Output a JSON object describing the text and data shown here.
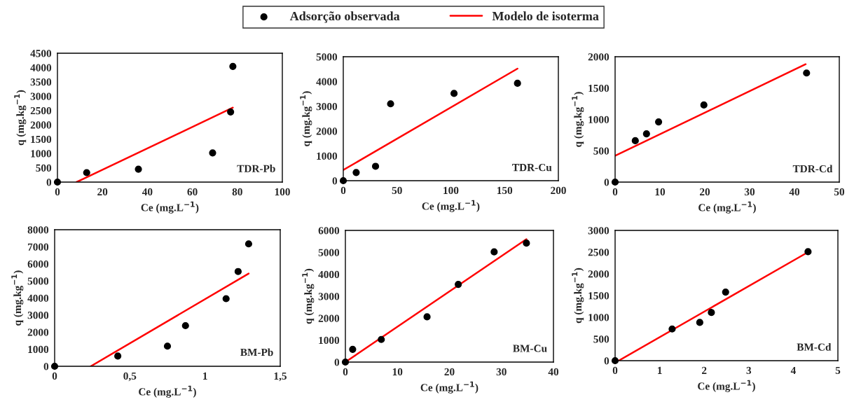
{
  "chart_data": [
    {
      "type": "scatter",
      "xlabel": "Ce (mg.L$^{−1}$)",
      "ylabel": "q (mg.kg$^{−1}$)",
      "annotations": [
        "TDR-Pb"
      ],
      "legend": "top",
      "grid": false,
      "xlim": [
        0,
        100
      ],
      "xticks": [
        0,
        20,
        40,
        60,
        80,
        100
      ],
      "ylim": [
        0,
        4500
      ],
      "yticks": [
        0,
        500,
        1000,
        1500,
        2000,
        2500,
        3000,
        3500,
        4000,
        4500
      ],
      "series": [
        {
          "name": "Adsorção observada",
          "marker": "circle",
          "color": "#000000",
          "x": [
            0,
            13,
            36,
            69,
            77,
            78
          ],
          "values": [
            0,
            330,
            450,
            1020,
            2450,
            4040
          ]
        },
        {
          "name": "Modelo de isoterma",
          "type": "line",
          "marker": "none",
          "color": "#ff0000",
          "x": [
            8.5,
            78
          ],
          "values": [
            0,
            2600
          ]
        }
      ]
    },
    {
      "type": "scatter",
      "xlabel": "Ce (mg.L$^{−1}$)",
      "ylabel": "q (mg.kg$^{−1}$)",
      "annotations": [
        "TDR-Cu"
      ],
      "grid": false,
      "xlim": [
        0,
        200
      ],
      "xticks": [
        0,
        50,
        100,
        150,
        200
      ],
      "ylim": [
        0,
        5000
      ],
      "yticks": [
        0,
        1000,
        2000,
        3000,
        4000,
        5000
      ],
      "series": [
        {
          "marker": "circle",
          "color": "#000000",
          "x": [
            0,
            12,
            30,
            44,
            103,
            162
          ],
          "values": [
            0,
            330,
            580,
            3100,
            3520,
            3930
          ]
        },
        {
          "type": "line",
          "marker": "none",
          "color": "#ff0000",
          "x": [
            0,
            162
          ],
          "values": [
            430,
            4520
          ]
        }
      ]
    },
    {
      "type": "scatter",
      "xlabel": "Ce (mg.L$^{−1}$)",
      "ylabel": "q (mg.kg$^{−1}$)",
      "annotations": [
        "TDR-Cd"
      ],
      "grid": false,
      "xlim": [
        0,
        50
      ],
      "xticks": [
        0,
        10,
        20,
        30,
        40,
        50
      ],
      "ylim": [
        0,
        2000
      ],
      "yticks": [
        0,
        500,
        1000,
        1500,
        2000
      ],
      "series": [
        {
          "marker": "circle",
          "color": "#000000",
          "x": [
            0,
            4.5,
            7,
            9.7,
            19.8,
            42.7
          ],
          "values": [
            0,
            660,
            770,
            960,
            1230,
            1740
          ]
        },
        {
          "type": "line",
          "marker": "none",
          "color": "#ff0000",
          "x": [
            0,
            42.5
          ],
          "values": [
            420,
            1880
          ]
        }
      ]
    },
    {
      "type": "scatter",
      "xlabel": "Ce (mg.L$^{−1}$)",
      "ylabel": "q (mg.kg$^{−1}$)",
      "annotations": [
        "BM-Pb"
      ],
      "grid": false,
      "xlim": [
        0,
        1.5
      ],
      "xticks": [
        0,
        {
          "value": 0.5,
          "label": "0,5"
        },
        1,
        {
          "value": 1.5,
          "label": "1,5"
        }
      ],
      "ylim": [
        0,
        8000
      ],
      "yticks": [
        0,
        1000,
        2000,
        3000,
        4000,
        5000,
        6000,
        7000,
        8000
      ],
      "series": [
        {
          "marker": "circle",
          "color": "#000000",
          "x": [
            0,
            0.42,
            0.75,
            0.87,
            1.14,
            1.22,
            1.29
          ],
          "values": [
            0,
            600,
            1180,
            2380,
            3960,
            5550,
            7170
          ]
        },
        {
          "type": "line",
          "marker": "none",
          "color": "#ff0000",
          "x": [
            0.24,
            1.29
          ],
          "values": [
            0,
            5430
          ]
        }
      ]
    },
    {
      "type": "scatter",
      "xlabel": "Ce (mg.L$^{−1}$)",
      "ylabel": "q (mg.kg$^{−1}$)",
      "annotations": [
        "BM-Cu"
      ],
      "grid": false,
      "xlim": [
        0,
        40
      ],
      "xticks": [
        0,
        10,
        20,
        30,
        40
      ],
      "ylim": [
        0,
        6000
      ],
      "yticks": [
        0,
        1000,
        2000,
        3000,
        4000,
        5000,
        6000
      ],
      "series": [
        {
          "marker": "circle",
          "color": "#000000",
          "x": [
            0,
            1.4,
            6.9,
            15.7,
            21.7,
            28.6,
            34.8
          ],
          "values": [
            0,
            580,
            1030,
            2060,
            3540,
            5020,
            5420
          ]
        },
        {
          "type": "line",
          "marker": "none",
          "color": "#ff0000",
          "x": [
            0,
            34.8
          ],
          "values": [
            0,
            5600
          ]
        }
      ]
    },
    {
      "type": "scatter",
      "xlabel": "Ce (mg.L$^{−1}$)",
      "ylabel": "q (mg.kg$^{−1}$)",
      "annotations": [
        "BM-Cd"
      ],
      "grid": false,
      "xlim": [
        0,
        5
      ],
      "xticks": [
        0,
        1,
        2,
        3,
        4,
        5
      ],
      "ylim": [
        0,
        3000
      ],
      "yticks": [
        0,
        500,
        1000,
        1500,
        2000,
        2500,
        3000
      ],
      "series": [
        {
          "marker": "circle",
          "color": "#000000",
          "x": [
            0,
            1.28,
            1.9,
            2.16,
            2.48,
            4.33
          ],
          "values": [
            0,
            730,
            880,
            1110,
            1580,
            2510
          ]
        },
        {
          "type": "line",
          "marker": "none",
          "color": "#ff0000",
          "x": [
            0.08,
            4.33
          ],
          "values": [
            0,
            2500
          ]
        }
      ]
    }
  ]
}
